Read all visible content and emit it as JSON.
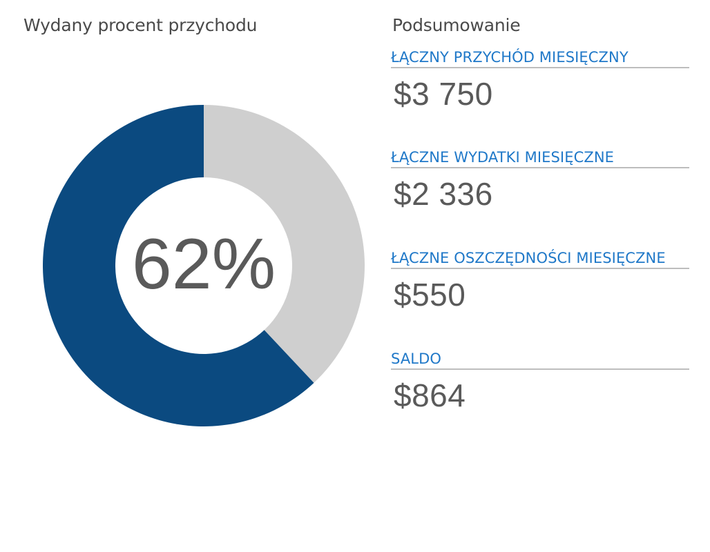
{
  "left_title": "Wydany procent przychodu",
  "right_title": "Podsumowanie",
  "chart_data": {
    "type": "pie",
    "variant": "donut",
    "title": "Wydany procent przychodu",
    "center_label": "62%",
    "slices": [
      {
        "value": 62,
        "color": "#0b4a80"
      },
      {
        "value": 38,
        "color": "#cfcfcf"
      }
    ]
  },
  "summary": {
    "items": [
      {
        "label": "ŁĄCZNY PRZYCHÓD MIESIĘCZNY",
        "value": "$3 750"
      },
      {
        "label": "ŁĄCZNE WYDATKI MIESIĘCZNE",
        "value": "$2 336"
      },
      {
        "label": "ŁĄCZNE OSZCZĘDNOŚCI MIESIĘCZNE",
        "value": "$550"
      },
      {
        "label": "SALDO",
        "value": "$864"
      }
    ]
  },
  "colors": {
    "accent": "#1f78c8",
    "spent": "#0b4a80",
    "remaining": "#cfcfcf",
    "text": "#5a5a5a"
  }
}
